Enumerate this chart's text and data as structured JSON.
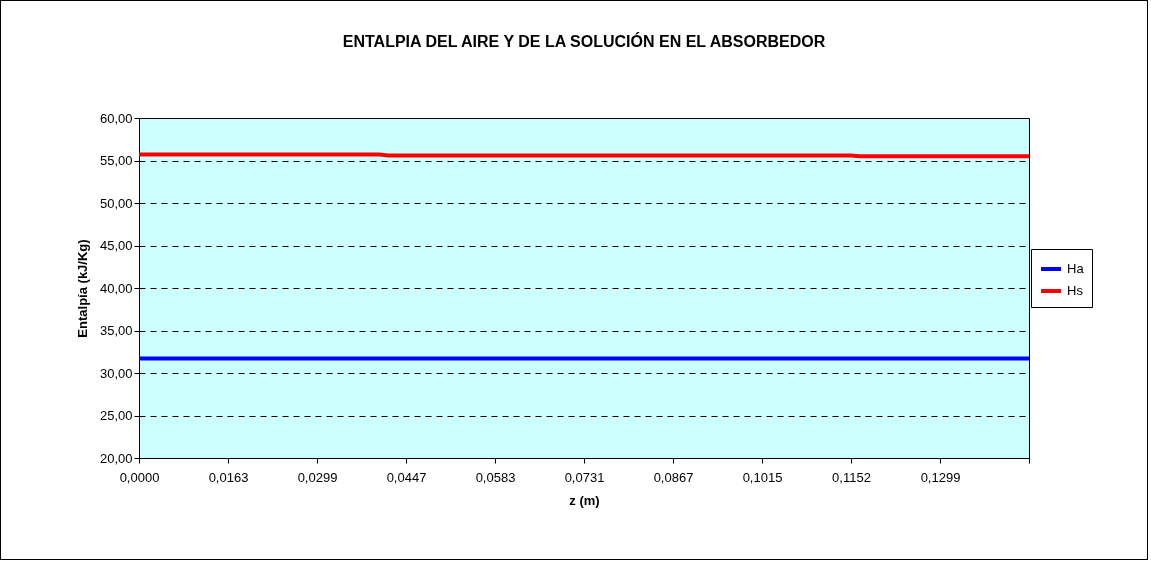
{
  "chart_data": {
    "type": "line",
    "title": "ENTALPIA DEL AIRE Y DE LA SOLUCIÓN EN EL ABSORBEDOR",
    "xlabel": "z (m)",
    "ylabel": "Entalpía (kJ/Kg)",
    "categories": [
      "0,0000",
      null,
      null,
      null,
      null,
      null,
      null,
      null,
      null,
      null,
      "0,0163",
      null,
      null,
      null,
      null,
      null,
      null,
      null,
      null,
      null,
      "0,0299",
      null,
      null,
      null,
      null,
      null,
      null,
      null,
      null,
      null,
      "0,0447",
      null,
      null,
      null,
      null,
      null,
      null,
      null,
      null,
      null,
      "0,0583",
      null,
      null,
      null,
      null,
      null,
      null,
      null,
      null,
      null,
      "0,0731",
      null,
      null,
      null,
      null,
      null,
      null,
      null,
      null,
      null,
      "0,0867",
      null,
      null,
      null,
      null,
      null,
      null,
      null,
      null,
      null,
      "0,1015",
      null,
      null,
      null,
      null,
      null,
      null,
      null,
      null,
      null,
      "0,1152",
      null,
      null,
      null,
      null,
      null,
      null,
      null,
      null,
      null,
      "0,1299",
      null,
      null,
      null,
      null,
      null,
      null,
      null,
      null,
      null,
      null
    ],
    "series": [
      {
        "name": "Ha",
        "color": "#0000ff",
        "values": [
          31.7,
          31.7,
          31.7,
          31.7,
          31.7,
          31.7,
          31.7,
          31.7,
          31.7,
          31.7,
          31.7,
          31.7,
          31.7,
          31.7,
          31.7,
          31.7,
          31.7,
          31.7,
          31.7,
          31.7,
          31.7,
          31.7,
          31.7,
          31.7,
          31.7,
          31.7,
          31.7,
          31.7,
          31.7,
          31.7,
          31.7,
          31.7,
          31.7,
          31.7,
          31.7,
          31.7,
          31.7,
          31.7,
          31.7,
          31.7,
          31.7,
          31.7,
          31.7,
          31.7,
          31.7,
          31.7,
          31.7,
          31.7,
          31.7,
          31.7,
          31.7,
          31.7,
          31.7,
          31.7,
          31.7,
          31.7,
          31.7,
          31.7,
          31.7,
          31.7,
          31.7,
          31.7,
          31.7,
          31.7,
          31.7,
          31.7,
          31.7,
          31.7,
          31.7,
          31.7,
          31.7,
          31.7,
          31.7,
          31.7,
          31.7,
          31.7,
          31.7,
          31.7,
          31.7,
          31.7,
          31.7,
          31.7,
          31.7,
          31.7,
          31.7,
          31.7,
          31.7,
          31.7,
          31.7,
          31.7,
          31.7,
          31.7,
          31.7,
          31.7,
          31.7,
          31.7,
          31.7,
          31.7,
          31.7,
          31.7,
          31.7
        ]
      },
      {
        "name": "Hs",
        "color": "#ff0000",
        "values": [
          55.7,
          55.7,
          55.7,
          55.7,
          55.7,
          55.7,
          55.7,
          55.7,
          55.7,
          55.7,
          55.7,
          55.7,
          55.7,
          55.7,
          55.7,
          55.7,
          55.7,
          55.7,
          55.7,
          55.7,
          55.7,
          55.7,
          55.7,
          55.7,
          55.7,
          55.7,
          55.7,
          55.7,
          55.6,
          55.6,
          55.6,
          55.6,
          55.6,
          55.6,
          55.6,
          55.6,
          55.6,
          55.6,
          55.6,
          55.6,
          55.6,
          55.6,
          55.6,
          55.6,
          55.6,
          55.6,
          55.6,
          55.6,
          55.6,
          55.6,
          55.6,
          55.6,
          55.6,
          55.6,
          55.6,
          55.6,
          55.6,
          55.6,
          55.6,
          55.6,
          55.6,
          55.6,
          55.6,
          55.6,
          55.6,
          55.6,
          55.6,
          55.6,
          55.6,
          55.6,
          55.6,
          55.6,
          55.6,
          55.6,
          55.6,
          55.6,
          55.6,
          55.6,
          55.6,
          55.6,
          55.6,
          55.5,
          55.5,
          55.5,
          55.5,
          55.5,
          55.5,
          55.5,
          55.5,
          55.5,
          55.5,
          55.5,
          55.5,
          55.5,
          55.5,
          55.5,
          55.5,
          55.5,
          55.5,
          55.5,
          55.5
        ]
      }
    ],
    "ylim": [
      20,
      60
    ],
    "yticks": [
      {
        "value": 20,
        "label": "20,00"
      },
      {
        "value": 25,
        "label": "25,00"
      },
      {
        "value": 30,
        "label": "30,00"
      },
      {
        "value": 35,
        "label": "35,00"
      },
      {
        "value": 40,
        "label": "40,00"
      },
      {
        "value": 45,
        "label": "45,00"
      },
      {
        "value": 50,
        "label": "50,00"
      },
      {
        "value": 55,
        "label": "55,00"
      },
      {
        "value": 60,
        "label": "60,00"
      }
    ],
    "grid": "y",
    "legend": "right",
    "marker": "none",
    "line_style": "solid"
  }
}
